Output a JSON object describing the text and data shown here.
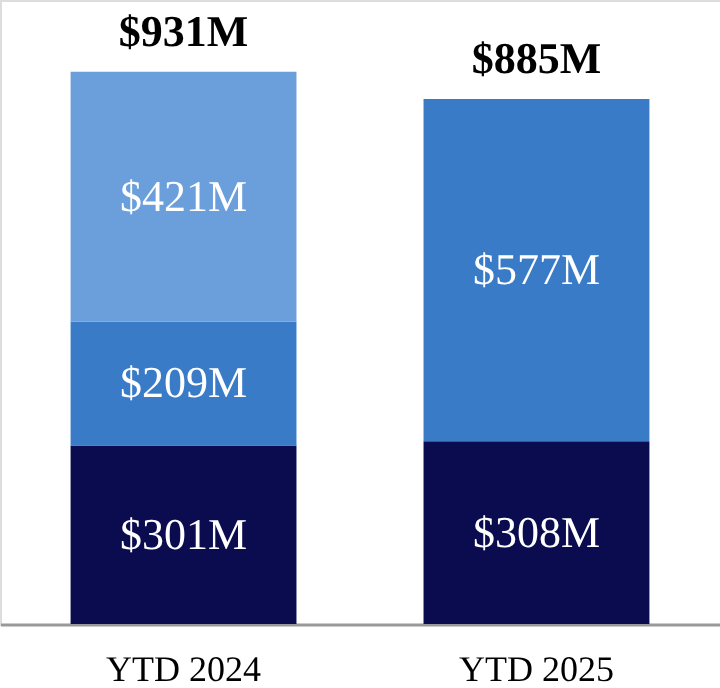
{
  "chart_data": {
    "type": "bar",
    "stacked": true,
    "categories": [
      "YTD 2024",
      "YTD 2025"
    ],
    "series": [
      {
        "color": "#0b0c4f",
        "values": [
          301,
          308
        ],
        "value_labels": [
          "$301M",
          "$308M"
        ]
      },
      {
        "color": "#3a7bc8",
        "values": [
          209,
          577
        ],
        "value_labels": [
          "$209M",
          "$577M"
        ]
      },
      {
        "color": "#6a9fdc",
        "values": [
          421,
          null
        ],
        "value_labels": [
          "$421M",
          null
        ]
      }
    ],
    "totals": [
      "$931M",
      "$885M"
    ],
    "grid": false
  }
}
